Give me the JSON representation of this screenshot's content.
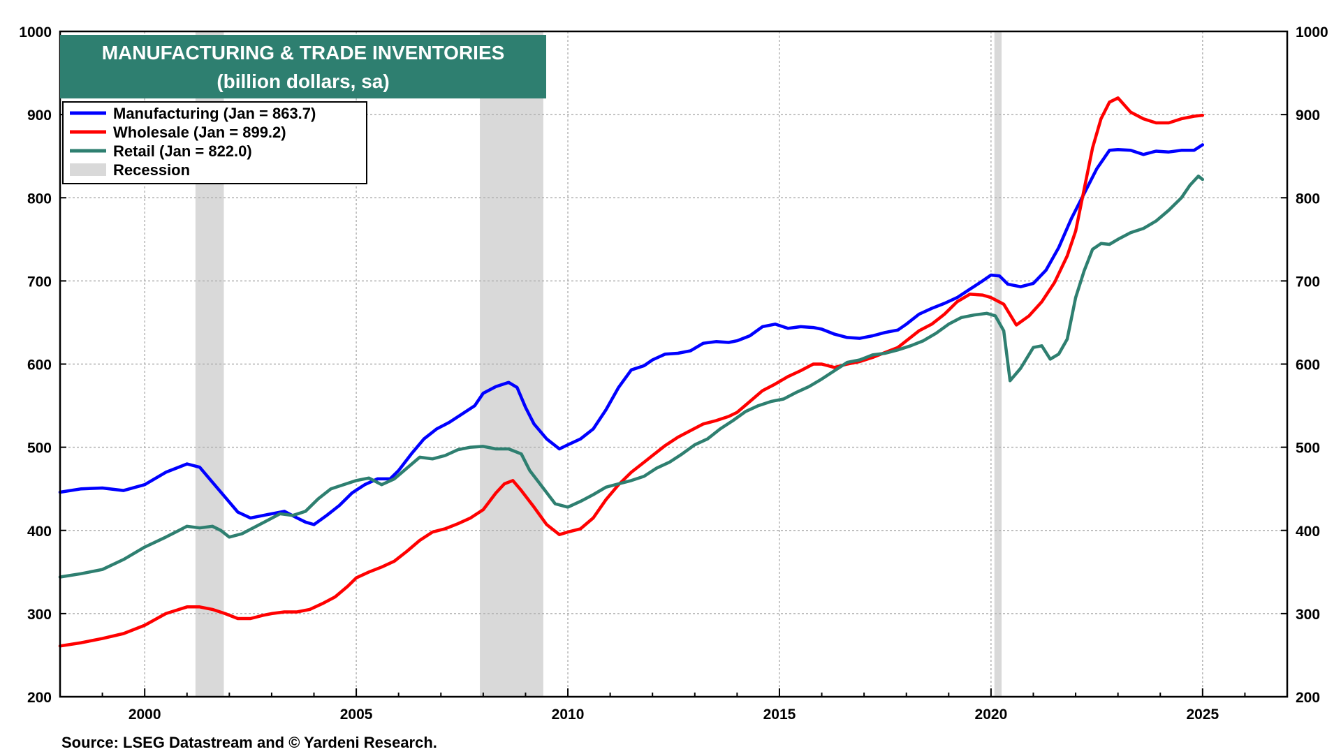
{
  "chart_data": {
    "type": "line",
    "title": "MANUFACTURING & TRADE INVENTORIES",
    "subtitle": "(billion dollars, sa)",
    "source": "Source: LSEG Datastream and © Yardeni Research.",
    "xlim": [
      1998.0,
      2027.0
    ],
    "ylim": [
      200,
      1000
    ],
    "y_ticks": [
      200,
      300,
      400,
      500,
      600,
      700,
      800,
      900,
      1000
    ],
    "x_ticks": [
      2000,
      2005,
      2010,
      2015,
      2020,
      2025
    ],
    "grid": true,
    "legend_position": "top-left",
    "colors": {
      "title_bg": "#2e7f70",
      "grid": "#b0b0b0",
      "recession": "#d9d9d9"
    },
    "recessions": [
      [
        2001.2,
        2001.87
      ],
      [
        2007.92,
        2009.42
      ],
      [
        2020.08,
        2020.25
      ]
    ],
    "legend": [
      {
        "label": "Manufacturing (Jan = 863.7)",
        "color": "#0000ff",
        "kind": "line"
      },
      {
        "label": "Wholesale (Jan = 899.2)",
        "color": "#ff0000",
        "kind": "line"
      },
      {
        "label": "Retail (Jan = 822.0)",
        "color": "#2e7f70",
        "kind": "line"
      },
      {
        "label": "Recession",
        "color": "#d9d9d9",
        "kind": "box"
      }
    ],
    "series": [
      {
        "name": "Manufacturing",
        "color": "#0000ff",
        "points": [
          [
            1998.0,
            446
          ],
          [
            1998.5,
            450
          ],
          [
            1999.0,
            451
          ],
          [
            1999.5,
            448
          ],
          [
            2000.0,
            455
          ],
          [
            2000.5,
            470
          ],
          [
            2001.0,
            480
          ],
          [
            2001.3,
            476
          ],
          [
            2001.6,
            458
          ],
          [
            2001.9,
            440
          ],
          [
            2002.2,
            422
          ],
          [
            2002.5,
            415
          ],
          [
            2002.8,
            418
          ],
          [
            2003.0,
            420
          ],
          [
            2003.3,
            423
          ],
          [
            2003.6,
            415
          ],
          [
            2003.8,
            410
          ],
          [
            2004.0,
            407
          ],
          [
            2004.3,
            418
          ],
          [
            2004.6,
            430
          ],
          [
            2004.9,
            445
          ],
          [
            2005.2,
            455
          ],
          [
            2005.5,
            462
          ],
          [
            2005.8,
            462
          ],
          [
            2006.0,
            472
          ],
          [
            2006.3,
            492
          ],
          [
            2006.6,
            510
          ],
          [
            2006.9,
            522
          ],
          [
            2007.2,
            530
          ],
          [
            2007.5,
            540
          ],
          [
            2007.8,
            550
          ],
          [
            2008.0,
            565
          ],
          [
            2008.3,
            573
          ],
          [
            2008.6,
            578
          ],
          [
            2008.8,
            572
          ],
          [
            2009.0,
            548
          ],
          [
            2009.2,
            528
          ],
          [
            2009.5,
            510
          ],
          [
            2009.8,
            498
          ],
          [
            2010.0,
            503
          ],
          [
            2010.3,
            510
          ],
          [
            2010.6,
            522
          ],
          [
            2010.9,
            545
          ],
          [
            2011.2,
            572
          ],
          [
            2011.5,
            593
          ],
          [
            2011.8,
            598
          ],
          [
            2012.0,
            605
          ],
          [
            2012.3,
            612
          ],
          [
            2012.6,
            613
          ],
          [
            2012.9,
            616
          ],
          [
            2013.2,
            625
          ],
          [
            2013.5,
            627
          ],
          [
            2013.8,
            626
          ],
          [
            2014.0,
            628
          ],
          [
            2014.3,
            634
          ],
          [
            2014.6,
            645
          ],
          [
            2014.9,
            648
          ],
          [
            2015.2,
            643
          ],
          [
            2015.5,
            645
          ],
          [
            2015.8,
            644
          ],
          [
            2016.0,
            642
          ],
          [
            2016.3,
            636
          ],
          [
            2016.6,
            632
          ],
          [
            2016.9,
            631
          ],
          [
            2017.2,
            634
          ],
          [
            2017.5,
            638
          ],
          [
            2017.8,
            641
          ],
          [
            2018.0,
            648
          ],
          [
            2018.3,
            660
          ],
          [
            2018.6,
            667
          ],
          [
            2018.9,
            673
          ],
          [
            2019.2,
            680
          ],
          [
            2019.5,
            690
          ],
          [
            2019.8,
            700
          ],
          [
            2020.0,
            707
          ],
          [
            2020.2,
            706
          ],
          [
            2020.4,
            696
          ],
          [
            2020.7,
            693
          ],
          [
            2021.0,
            697
          ],
          [
            2021.3,
            713
          ],
          [
            2021.6,
            740
          ],
          [
            2021.9,
            775
          ],
          [
            2022.2,
            805
          ],
          [
            2022.5,
            835
          ],
          [
            2022.8,
            857
          ],
          [
            2023.0,
            858
          ],
          [
            2023.3,
            857
          ],
          [
            2023.6,
            852
          ],
          [
            2023.9,
            856
          ],
          [
            2024.2,
            855
          ],
          [
            2024.5,
            857
          ],
          [
            2024.8,
            857
          ],
          [
            2025.0,
            863.7
          ]
        ]
      },
      {
        "name": "Wholesale",
        "color": "#ff0000",
        "points": [
          [
            1998.0,
            261
          ],
          [
            1998.5,
            265
          ],
          [
            1999.0,
            270
          ],
          [
            1999.5,
            276
          ],
          [
            2000.0,
            286
          ],
          [
            2000.5,
            300
          ],
          [
            2001.0,
            308
          ],
          [
            2001.3,
            308
          ],
          [
            2001.6,
            305
          ],
          [
            2001.9,
            300
          ],
          [
            2002.2,
            294
          ],
          [
            2002.5,
            294
          ],
          [
            2002.8,
            298
          ],
          [
            2003.0,
            300
          ],
          [
            2003.3,
            302
          ],
          [
            2003.6,
            302
          ],
          [
            2003.9,
            305
          ],
          [
            2004.2,
            312
          ],
          [
            2004.5,
            320
          ],
          [
            2004.8,
            333
          ],
          [
            2005.0,
            343
          ],
          [
            2005.3,
            350
          ],
          [
            2005.6,
            356
          ],
          [
            2005.9,
            363
          ],
          [
            2006.2,
            375
          ],
          [
            2006.5,
            388
          ],
          [
            2006.8,
            398
          ],
          [
            2007.1,
            402
          ],
          [
            2007.4,
            408
          ],
          [
            2007.7,
            415
          ],
          [
            2008.0,
            425
          ],
          [
            2008.3,
            445
          ],
          [
            2008.5,
            456
          ],
          [
            2008.7,
            460
          ],
          [
            2008.9,
            448
          ],
          [
            2009.2,
            428
          ],
          [
            2009.5,
            407
          ],
          [
            2009.8,
            395
          ],
          [
            2010.0,
            398
          ],
          [
            2010.3,
            402
          ],
          [
            2010.6,
            415
          ],
          [
            2010.9,
            437
          ],
          [
            2011.2,
            455
          ],
          [
            2011.5,
            470
          ],
          [
            2011.8,
            482
          ],
          [
            2012.0,
            490
          ],
          [
            2012.3,
            502
          ],
          [
            2012.6,
            512
          ],
          [
            2012.9,
            520
          ],
          [
            2013.2,
            528
          ],
          [
            2013.5,
            532
          ],
          [
            2013.8,
            537
          ],
          [
            2014.0,
            542
          ],
          [
            2014.3,
            555
          ],
          [
            2014.6,
            568
          ],
          [
            2014.9,
            576
          ],
          [
            2015.2,
            585
          ],
          [
            2015.5,
            592
          ],
          [
            2015.8,
            600
          ],
          [
            2016.0,
            600
          ],
          [
            2016.3,
            596
          ],
          [
            2016.6,
            600
          ],
          [
            2016.9,
            603
          ],
          [
            2017.2,
            608
          ],
          [
            2017.5,
            614
          ],
          [
            2017.8,
            620
          ],
          [
            2018.0,
            628
          ],
          [
            2018.3,
            640
          ],
          [
            2018.6,
            648
          ],
          [
            2018.9,
            660
          ],
          [
            2019.2,
            675
          ],
          [
            2019.5,
            684
          ],
          [
            2019.8,
            683
          ],
          [
            2020.0,
            680
          ],
          [
            2020.3,
            672
          ],
          [
            2020.6,
            647
          ],
          [
            2020.9,
            658
          ],
          [
            2021.2,
            675
          ],
          [
            2021.5,
            698
          ],
          [
            2021.8,
            730
          ],
          [
            2022.0,
            760
          ],
          [
            2022.2,
            810
          ],
          [
            2022.4,
            860
          ],
          [
            2022.6,
            895
          ],
          [
            2022.8,
            915
          ],
          [
            2023.0,
            920
          ],
          [
            2023.3,
            903
          ],
          [
            2023.6,
            895
          ],
          [
            2023.9,
            890
          ],
          [
            2024.2,
            890
          ],
          [
            2024.5,
            895
          ],
          [
            2024.8,
            898
          ],
          [
            2025.0,
            899.2
          ]
        ]
      },
      {
        "name": "Retail",
        "color": "#2e7f70",
        "points": [
          [
            1998.0,
            344
          ],
          [
            1998.5,
            348
          ],
          [
            1999.0,
            353
          ],
          [
            1999.5,
            365
          ],
          [
            2000.0,
            380
          ],
          [
            2000.5,
            392
          ],
          [
            2001.0,
            405
          ],
          [
            2001.3,
            403
          ],
          [
            2001.6,
            405
          ],
          [
            2001.8,
            400
          ],
          [
            2002.0,
            392
          ],
          [
            2002.3,
            396
          ],
          [
            2002.6,
            404
          ],
          [
            2002.9,
            412
          ],
          [
            2003.2,
            420
          ],
          [
            2003.5,
            418
          ],
          [
            2003.8,
            423
          ],
          [
            2004.1,
            438
          ],
          [
            2004.4,
            450
          ],
          [
            2004.7,
            455
          ],
          [
            2005.0,
            460
          ],
          [
            2005.3,
            463
          ],
          [
            2005.6,
            455
          ],
          [
            2005.9,
            462
          ],
          [
            2006.2,
            475
          ],
          [
            2006.5,
            488
          ],
          [
            2006.8,
            486
          ],
          [
            2007.1,
            490
          ],
          [
            2007.4,
            497
          ],
          [
            2007.7,
            500
          ],
          [
            2008.0,
            501
          ],
          [
            2008.3,
            498
          ],
          [
            2008.6,
            498
          ],
          [
            2008.9,
            492
          ],
          [
            2009.1,
            472
          ],
          [
            2009.4,
            452
          ],
          [
            2009.7,
            432
          ],
          [
            2010.0,
            428
          ],
          [
            2010.3,
            435
          ],
          [
            2010.6,
            443
          ],
          [
            2010.9,
            452
          ],
          [
            2011.2,
            456
          ],
          [
            2011.5,
            460
          ],
          [
            2011.8,
            465
          ],
          [
            2012.1,
            475
          ],
          [
            2012.4,
            482
          ],
          [
            2012.7,
            492
          ],
          [
            2013.0,
            503
          ],
          [
            2013.3,
            510
          ],
          [
            2013.6,
            522
          ],
          [
            2013.9,
            532
          ],
          [
            2014.2,
            543
          ],
          [
            2014.5,
            550
          ],
          [
            2014.8,
            555
          ],
          [
            2015.1,
            558
          ],
          [
            2015.4,
            566
          ],
          [
            2015.7,
            573
          ],
          [
            2016.0,
            582
          ],
          [
            2016.3,
            592
          ],
          [
            2016.6,
            602
          ],
          [
            2016.9,
            605
          ],
          [
            2017.2,
            611
          ],
          [
            2017.5,
            613
          ],
          [
            2017.8,
            617
          ],
          [
            2018.1,
            622
          ],
          [
            2018.4,
            628
          ],
          [
            2018.7,
            637
          ],
          [
            2019.0,
            648
          ],
          [
            2019.3,
            656
          ],
          [
            2019.6,
            659
          ],
          [
            2019.9,
            661
          ],
          [
            2020.1,
            658
          ],
          [
            2020.3,
            640
          ],
          [
            2020.45,
            580
          ],
          [
            2020.7,
            595
          ],
          [
            2021.0,
            620
          ],
          [
            2021.2,
            622
          ],
          [
            2021.4,
            606
          ],
          [
            2021.6,
            612
          ],
          [
            2021.8,
            630
          ],
          [
            2022.0,
            680
          ],
          [
            2022.2,
            712
          ],
          [
            2022.4,
            738
          ],
          [
            2022.6,
            745
          ],
          [
            2022.8,
            744
          ],
          [
            2023.0,
            750
          ],
          [
            2023.3,
            758
          ],
          [
            2023.6,
            763
          ],
          [
            2023.9,
            772
          ],
          [
            2024.2,
            785
          ],
          [
            2024.5,
            800
          ],
          [
            2024.7,
            815
          ],
          [
            2024.9,
            826
          ],
          [
            2025.0,
            822
          ]
        ]
      }
    ]
  }
}
